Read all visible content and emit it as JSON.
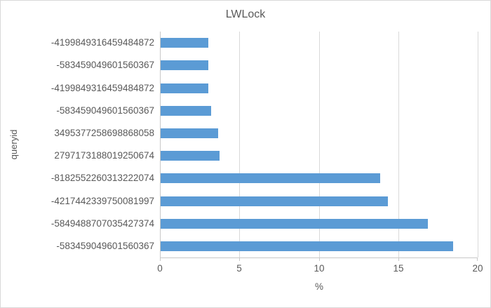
{
  "chart_data": {
    "type": "bar",
    "orientation": "horizontal",
    "title": "LWLock",
    "xlabel": "%",
    "ylabel": "queryid",
    "xlim": [
      0,
      20
    ],
    "xticks": [
      0,
      5,
      10,
      15,
      20
    ],
    "grid": true,
    "legend": false,
    "categories": [
      "-4199849316459484872",
      "-583459049601560367",
      "-4199849316459484872",
      "-583459049601560367",
      "3495377258698868058",
      "2797173188019250674",
      "-8182552260313222074",
      "-4217442339750081997",
      "-5849488707035427374",
      "-583459049601560367"
    ],
    "values": [
      3.0,
      3.0,
      3.0,
      3.2,
      3.6,
      3.7,
      13.8,
      14.3,
      16.8,
      18.4
    ]
  },
  "colors": {
    "bar": "#5b9bd5",
    "gridline": "#d9d9d9",
    "axis_line": "#c8c8c8",
    "text": "#595959",
    "border": "#d9d9d9",
    "background": "#ffffff"
  }
}
